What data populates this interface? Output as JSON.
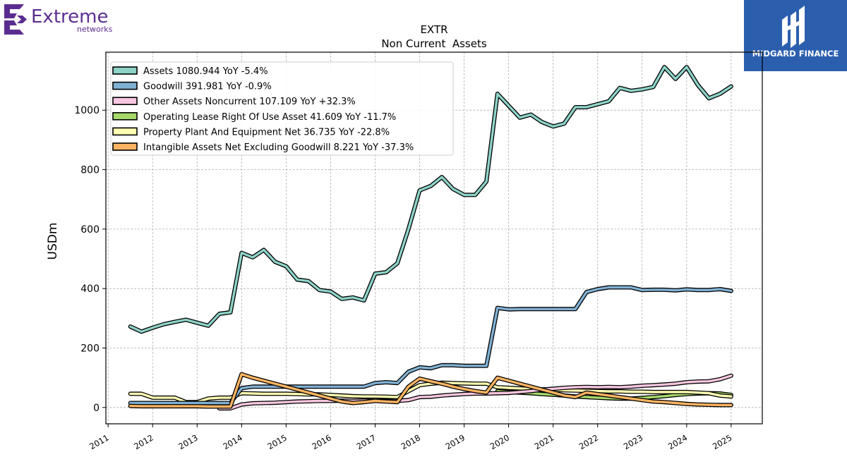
{
  "logos": {
    "left_brand": "Extreme",
    "left_sub": "networks",
    "left_color": "#5b2d90",
    "right_brand": "MIDGARD FINANCE",
    "right_bg": "#2b5fae"
  },
  "chart_data": {
    "type": "line",
    "title": "EXTR",
    "subtitle": "Non Current  Assets",
    "ylabel": "USDm",
    "xlabel": "",
    "ylim": [
      -55,
      1195
    ],
    "xlim": [
      2010.95,
      2025.7
    ],
    "grid": true,
    "legend_position": "top-left",
    "x_ticks": [
      2011,
      2012,
      2013,
      2014,
      2015,
      2016,
      2017,
      2018,
      2019,
      2020,
      2021,
      2022,
      2023,
      2024,
      2025
    ],
    "x_tick_labels": [
      "2011",
      "2012",
      "2013",
      "2014",
      "2015",
      "2016",
      "2017",
      "2018",
      "2019",
      "2020",
      "2021",
      "2022",
      "2023",
      "2024",
      "2025"
    ],
    "y_ticks": [
      0,
      200,
      400,
      600,
      800,
      1000
    ],
    "y_tick_labels": [
      "0",
      "200",
      "400",
      "600",
      "800",
      "1000"
    ],
    "series": [
      {
        "name": "Operating Lease Right Of Use Asset",
        "legend": "Operating Lease Right Of Use Asset  41.609 YoY -11.7%",
        "color": "#a6d96a",
        "x": [
          2019.75,
          2020.0,
          2020.25,
          2020.5,
          2020.75,
          2021.0,
          2021.25,
          2021.5,
          2021.75,
          2022.0,
          2022.25,
          2022.5,
          2022.75,
          2023.0,
          2023.25,
          2023.5,
          2023.75,
          2024.0,
          2024.25,
          2024.5,
          2024.75,
          2025.0
        ],
        "y": [
          55,
          52,
          50,
          48,
          45,
          43,
          40,
          37,
          35,
          33,
          31,
          30,
          30,
          32,
          35,
          38,
          42,
          45,
          47,
          48,
          47,
          42
        ]
      },
      {
        "name": "Property Plant And Equipment Net",
        "legend": "Property Plant And Equipment Net  36.735 YoY -22.8%",
        "color": "#ffffb3",
        "x": [
          2011.5,
          2011.75,
          2012.0,
          2012.25,
          2012.5,
          2012.75,
          2013.0,
          2013.25,
          2013.5,
          2013.75,
          2014.0,
          2014.25,
          2014.5,
          2014.75,
          2015.0,
          2015.25,
          2015.5,
          2015.75,
          2016.0,
          2016.25,
          2016.5,
          2016.75,
          2017.0,
          2017.25,
          2017.5,
          2017.75,
          2018.0,
          2018.25,
          2018.5,
          2018.75,
          2019.0,
          2019.25,
          2019.5,
          2019.75,
          2020.0,
          2020.25,
          2020.5,
          2020.75,
          2021.0,
          2021.25,
          2021.5,
          2021.75,
          2022.0,
          2022.25,
          2022.5,
          2022.75,
          2023.0,
          2023.25,
          2023.5,
          2023.75,
          2024.0,
          2024.25,
          2024.5,
          2024.75,
          2025.0
        ],
        "y": [
          46,
          46,
          33,
          33,
          33,
          18,
          18,
          30,
          33,
          33,
          48,
          47,
          46,
          46,
          46,
          45,
          44,
          44,
          42,
          40,
          38,
          37,
          37,
          36,
          35,
          55,
          75,
          80,
          83,
          82,
          81,
          80,
          80,
          68,
          66,
          64,
          62,
          61,
          60,
          58,
          57,
          56,
          55,
          54,
          54,
          53,
          53,
          52,
          52,
          52,
          52,
          50,
          48,
          40,
          37
        ]
      },
      {
        "name": "Other Assets Noncurrent",
        "legend": "Other Assets Noncurrent  107.109 YoY +32.3%",
        "color": "#f8c6e0",
        "x": [
          2013.5,
          2013.75,
          2014.0,
          2014.25,
          2014.5,
          2014.75,
          2015.0,
          2015.25,
          2015.5,
          2015.75,
          2016.0,
          2016.25,
          2016.5,
          2016.75,
          2017.0,
          2017.25,
          2017.5,
          2017.75,
          2018.0,
          2018.25,
          2018.5,
          2018.75,
          2019.0,
          2019.25,
          2019.5,
          2019.75,
          2020.0,
          2020.25,
          2020.5,
          2020.75,
          2021.0,
          2021.25,
          2021.5,
          2021.75,
          2022.0,
          2022.25,
          2022.5,
          2022.75,
          2023.0,
          2023.25,
          2023.5,
          2023.75,
          2024.0,
          2024.25,
          2024.5,
          2024.75,
          2025.0
        ],
        "y": [
          -3,
          -3,
          10,
          14,
          15,
          16,
          18,
          20,
          21,
          22,
          22,
          23,
          22,
          23,
          22,
          22,
          22,
          25,
          35,
          36,
          40,
          43,
          45,
          47,
          47,
          48,
          49,
          52,
          55,
          60,
          63,
          66,
          68,
          69,
          68,
          69,
          68,
          70,
          73,
          75,
          77,
          80,
          85,
          87,
          88,
          95,
          107
        ]
      },
      {
        "name": "Goodwill",
        "legend": "Goodwill  391.981 YoY -0.9%",
        "color": "#80b1d3",
        "x": [
          2011.5,
          2011.75,
          2012.0,
          2012.25,
          2012.5,
          2012.75,
          2013.0,
          2013.25,
          2013.5,
          2013.75,
          2014.0,
          2014.25,
          2014.5,
          2014.75,
          2015.0,
          2015.25,
          2015.5,
          2015.75,
          2016.0,
          2016.25,
          2016.5,
          2016.75,
          2017.0,
          2017.25,
          2017.5,
          2017.75,
          2018.0,
          2018.25,
          2018.5,
          2018.75,
          2019.0,
          2019.25,
          2019.5,
          2019.75,
          2020.0,
          2020.25,
          2020.5,
          2020.75,
          2021.0,
          2021.25,
          2021.5,
          2021.75,
          2022.0,
          2022.25,
          2022.5,
          2022.75,
          2023.0,
          2023.25,
          2023.5,
          2023.75,
          2024.0,
          2024.25,
          2024.5,
          2024.75,
          2025.0
        ],
        "y": [
          15,
          15,
          15,
          15,
          15,
          15,
          15,
          15,
          15,
          15,
          65,
          70,
          70,
          70,
          70,
          70,
          70,
          70,
          70,
          70,
          70,
          70,
          82,
          85,
          82,
          120,
          135,
          132,
          142,
          142,
          140,
          140,
          140,
          335,
          330,
          331,
          331,
          331,
          331,
          331,
          331,
          388,
          398,
          404,
          404,
          404,
          395,
          396,
          396,
          394,
          397,
          395,
          395,
          398,
          392
        ]
      },
      {
        "name": "Intangible Assets Net Excluding Goodwill",
        "legend": "Intangible Assets Net Excluding Goodwill  8.221 YoY -37.3%",
        "color": "#fdb462",
        "x": [
          2011.5,
          2011.75,
          2012.0,
          2012.25,
          2012.5,
          2012.75,
          2013.0,
          2013.25,
          2013.5,
          2013.75,
          2014.0,
          2014.25,
          2014.5,
          2014.75,
          2015.0,
          2015.25,
          2015.5,
          2015.75,
          2016.0,
          2016.25,
          2016.5,
          2016.75,
          2017.0,
          2017.25,
          2017.5,
          2017.75,
          2018.0,
          2018.25,
          2018.5,
          2018.75,
          2019.0,
          2019.25,
          2019.5,
          2019.75,
          2020.0,
          2020.25,
          2020.5,
          2020.75,
          2021.0,
          2021.25,
          2021.5,
          2021.75,
          2022.0,
          2022.25,
          2022.5,
          2022.75,
          2023.0,
          2023.25,
          2023.5,
          2023.75,
          2024.0,
          2024.25,
          2024.5,
          2024.75,
          2025.0
        ],
        "y": [
          5,
          4,
          4,
          4,
          4,
          4,
          4,
          3,
          3,
          3,
          112,
          100,
          90,
          80,
          70,
          60,
          50,
          40,
          30,
          20,
          15,
          18,
          22,
          20,
          18,
          70,
          97,
          88,
          80,
          70,
          62,
          55,
          50,
          100,
          90,
          80,
          70,
          60,
          50,
          40,
          35,
          50,
          45,
          40,
          35,
          30,
          25,
          20,
          18,
          15,
          12,
          10,
          9,
          8,
          8
        ]
      },
      {
        "name": "Assets",
        "legend": "Assets  1080.944 YoY -5.4%",
        "color": "#8dd3c7",
        "x": [
          2011.5,
          2011.75,
          2012.0,
          2012.25,
          2012.5,
          2012.75,
          2013.0,
          2013.25,
          2013.5,
          2013.75,
          2014.0,
          2014.25,
          2014.5,
          2014.75,
          2015.0,
          2015.25,
          2015.5,
          2015.75,
          2016.0,
          2016.25,
          2016.5,
          2016.75,
          2017.0,
          2017.25,
          2017.5,
          2017.75,
          2018.0,
          2018.25,
          2018.5,
          2018.75,
          2019.0,
          2019.25,
          2019.5,
          2019.75,
          2020.0,
          2020.25,
          2020.5,
          2020.75,
          2021.0,
          2021.25,
          2021.5,
          2021.75,
          2022.0,
          2022.25,
          2022.5,
          2022.75,
          2023.0,
          2023.25,
          2023.5,
          2023.75,
          2024.0,
          2024.25,
          2024.5,
          2024.75,
          2025.0
        ],
        "y": [
          272,
          255,
          268,
          280,
          288,
          295,
          285,
          275,
          315,
          320,
          520,
          505,
          530,
          490,
          475,
          430,
          425,
          395,
          390,
          365,
          370,
          360,
          450,
          455,
          485,
          600,
          730,
          745,
          775,
          735,
          715,
          715,
          760,
          1055,
          1015,
          975,
          985,
          960,
          945,
          955,
          1010,
          1010,
          1020,
          1030,
          1075,
          1065,
          1070,
          1078,
          1145,
          1105,
          1145,
          1085,
          1040,
          1055,
          1080
        ]
      }
    ],
    "legend_order": [
      "Assets",
      "Goodwill",
      "Other Assets Noncurrent",
      "Operating Lease Right Of Use Asset",
      "Property Plant And Equipment Net",
      "Intangible Assets Net Excluding Goodwill"
    ]
  }
}
